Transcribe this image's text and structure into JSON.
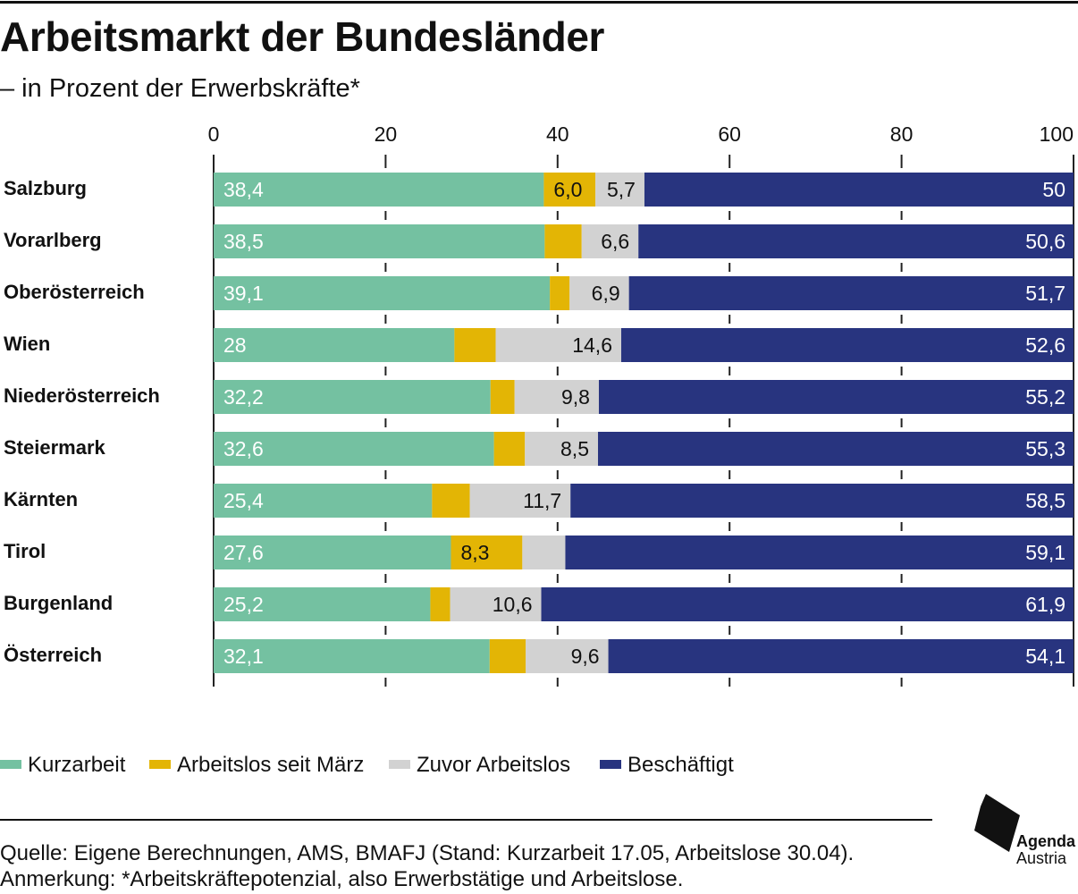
{
  "header": {
    "title": "Arbeitsmarkt der Bundesländer",
    "subtitle": "– in Prozent der Erwerbskräfte*"
  },
  "chart_data": {
    "type": "bar",
    "orientation": "horizontal",
    "stacked": true,
    "categories": [
      "Salzburg",
      "Vorarlberg",
      "Oberösterreich",
      "Wien",
      "Niederösterreich",
      "Steiermark",
      "Kärnten",
      "Tirol",
      "Burgenland",
      "Österreich"
    ],
    "series": [
      {
        "name": "Kurzarbeit",
        "color": "#74c1a1",
        "values": [
          38.4,
          38.5,
          39.1,
          28,
          32.2,
          32.6,
          25.4,
          27.6,
          25.2,
          32.1
        ],
        "labels": [
          "38,4",
          "38,5",
          "39,1",
          "28",
          "32,2",
          "32,6",
          "25,4",
          "27,6",
          "25,2",
          "32,1"
        ]
      },
      {
        "name": "Arbeitslos seit März",
        "color": "#e3b505",
        "values": [
          6.0,
          4.3,
          2.3,
          4.8,
          2.8,
          3.6,
          4.4,
          8.3,
          2.3,
          4.2
        ],
        "labels": [
          "6,0",
          null,
          null,
          null,
          null,
          null,
          null,
          "8,3",
          null,
          null
        ]
      },
      {
        "name": "Zuvor Arbeitslos",
        "color": "#d2d2d2",
        "values": [
          5.7,
          6.6,
          6.9,
          14.6,
          9.8,
          8.5,
          11.7,
          5.0,
          10.6,
          9.6
        ],
        "labels": [
          "5,7",
          "6,6",
          "6,9",
          "14,6",
          "9,8",
          "8,5",
          "11,7",
          null,
          "10,6",
          "9,6"
        ]
      },
      {
        "name": "Beschäftigt",
        "color": "#28347f",
        "values": [
          50,
          50.6,
          51.7,
          52.6,
          55.2,
          55.3,
          58.5,
          59.1,
          61.9,
          54.1
        ],
        "labels": [
          "50",
          "50,6",
          "51,7",
          "52,6",
          "55,2",
          "55,3",
          "58,5",
          "59,1",
          "61,9",
          "54,1"
        ]
      }
    ],
    "xlim": [
      0,
      100
    ],
    "xticks": [
      0,
      20,
      40,
      60,
      80,
      100
    ],
    "xaxis_position": "top",
    "grid": true,
    "legend_position": "bottom-left"
  },
  "footer": {
    "source": "Quelle: Eigene Berechnungen, AMS, BMAFJ (Stand: Kurzarbeit 17.05, Arbeitslose 30.04).",
    "note": "Anmerkung: *Arbeitskräftepotenzial, also Erwerbstätige und Arbeitslose."
  },
  "logo": {
    "icon": "agenda-austria-logo-icon",
    "name_line1": "Agenda",
    "name_line2": "Austria"
  }
}
